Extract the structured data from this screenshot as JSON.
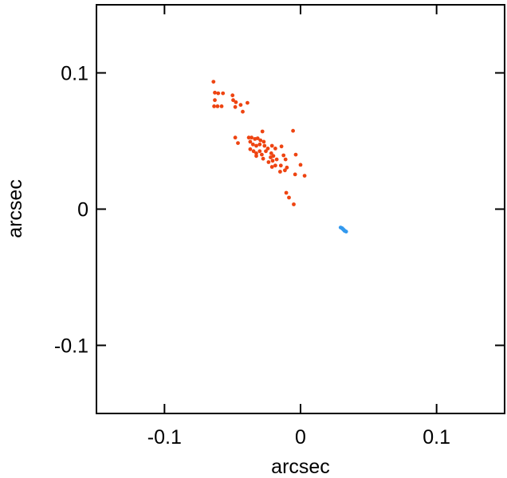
{
  "chart_data": {
    "type": "scatter",
    "title": "",
    "xlabel": "arcsec",
    "ylabel": "arcsec",
    "xlim": [
      -0.15,
      0.15
    ],
    "ylim": [
      -0.15,
      0.15
    ],
    "grid": false,
    "legend": "none",
    "xticks": [
      {
        "value": -0.1,
        "label": "-0.1"
      },
      {
        "value": 0,
        "label": "0"
      },
      {
        "value": 0.1,
        "label": "0.1"
      }
    ],
    "yticks": [
      {
        "value": -0.1,
        "label": "-0.1"
      },
      {
        "value": 0,
        "label": "0"
      },
      {
        "value": 0.1,
        "label": "0.1"
      }
    ],
    "series": [
      {
        "color": "#ee4411",
        "points": [
          [
            -0.064,
            0.0935
          ],
          [
            -0.063,
            0.0855
          ],
          [
            -0.0605,
            0.085
          ],
          [
            -0.057,
            0.085
          ],
          [
            -0.063,
            0.08
          ],
          [
            -0.0635,
            0.0755
          ],
          [
            -0.061,
            0.0755
          ],
          [
            -0.058,
            0.0755
          ],
          [
            -0.05,
            0.0835
          ],
          [
            -0.0495,
            0.08
          ],
          [
            -0.0475,
            0.0785
          ],
          [
            -0.048,
            0.075
          ],
          [
            -0.044,
            0.0765
          ],
          [
            -0.0425,
            0.0715
          ],
          [
            -0.039,
            0.078
          ],
          [
            -0.048,
            0.0525
          ],
          [
            -0.046,
            0.0485
          ],
          [
            -0.038,
            0.0525
          ],
          [
            -0.036,
            0.0525
          ],
          [
            -0.037,
            0.0495
          ],
          [
            -0.0335,
            0.0515
          ],
          [
            -0.0315,
            0.052
          ],
          [
            -0.0295,
            0.0505
          ],
          [
            -0.035,
            0.0475
          ],
          [
            -0.0325,
            0.0465
          ],
          [
            -0.03,
            0.0475
          ],
          [
            -0.027,
            0.0495
          ],
          [
            -0.028,
            0.057
          ],
          [
            -0.0265,
            0.0465
          ],
          [
            -0.024,
            0.0445
          ],
          [
            -0.021,
            0.0465
          ],
          [
            -0.0185,
            0.0445
          ],
          [
            -0.037,
            0.044
          ],
          [
            -0.0345,
            0.0425
          ],
          [
            -0.0325,
            0.041
          ],
          [
            -0.03,
            0.0425
          ],
          [
            -0.0285,
            0.04
          ],
          [
            -0.0255,
            0.0425
          ],
          [
            -0.0215,
            0.041
          ],
          [
            -0.02,
            0.039
          ],
          [
            -0.022,
            0.038
          ],
          [
            -0.0175,
            0.0365
          ],
          [
            -0.0325,
            0.039
          ],
          [
            -0.0275,
            0.037
          ],
          [
            -0.0235,
            0.0345
          ],
          [
            -0.0205,
            0.0355
          ],
          [
            -0.0185,
            0.032
          ],
          [
            -0.021,
            0.031
          ],
          [
            -0.014,
            0.046
          ],
          [
            -0.0125,
            0.0395
          ],
          [
            -0.011,
            0.0365
          ],
          [
            -0.0145,
            0.032
          ],
          [
            -0.0115,
            0.0285
          ],
          [
            -0.015,
            0.0275
          ],
          [
            -0.01,
            0.0305
          ],
          [
            -0.0055,
            0.0575
          ],
          [
            -0.0035,
            0.04
          ],
          [
            -0.004,
            0.0255
          ],
          [
            0.0,
            0.0325
          ],
          [
            0.003,
            0.0245
          ],
          [
            -0.0105,
            0.012
          ],
          [
            -0.0085,
            0.0085
          ],
          [
            -0.005,
            0.0035
          ]
        ]
      },
      {
        "color": "#3399ee",
        "points": [
          [
            0.0295,
            -0.0135
          ],
          [
            0.0305,
            -0.014
          ],
          [
            0.031,
            -0.0145
          ],
          [
            0.0315,
            -0.015
          ],
          [
            0.032,
            -0.0155
          ],
          [
            0.0325,
            -0.016
          ],
          [
            0.0335,
            -0.0165
          ]
        ]
      }
    ]
  }
}
